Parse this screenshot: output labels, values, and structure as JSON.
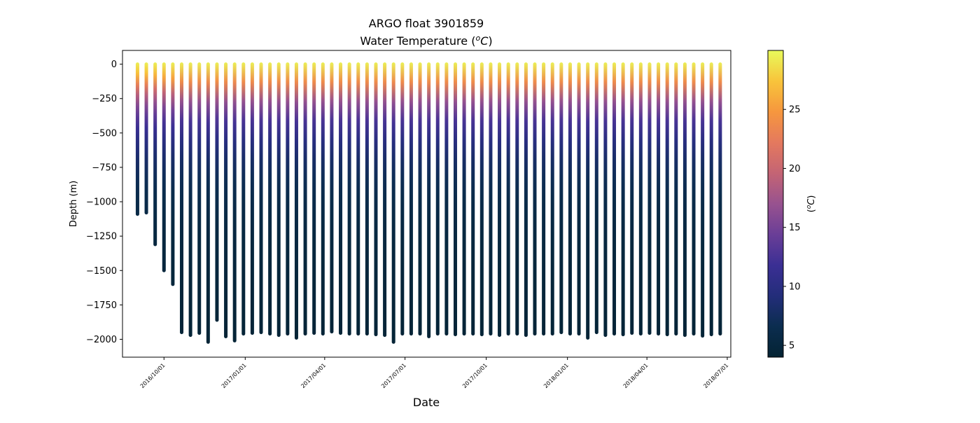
{
  "chart_data": {
    "type": "scatter",
    "title_line1": "ARGO float 3901859",
    "title_line2_prefix": "Water Temperature (",
    "title_line2_var": "o",
    "title_line2_unit": "C",
    "title_line2_suffix": ")",
    "xlabel": "Date",
    "ylabel": "Depth (m)",
    "colorbar_label_prefix": "(",
    "colorbar_label_var": "o",
    "colorbar_label_unit": "C",
    "colorbar_label_suffix": ")",
    "xlim": [
      "2016-08-15",
      "2018-07-05"
    ],
    "ylim": [
      -2130,
      100
    ],
    "yticks": [
      0,
      -250,
      -500,
      -750,
      -1000,
      -1250,
      -1500,
      -1750,
      -2000
    ],
    "ytick_labels": [
      "0",
      "−250",
      "−500",
      "−750",
      "−1000",
      "−1250",
      "−1500",
      "−1750",
      "−2000"
    ],
    "xticks": [
      "2016-10-01",
      "2017-01-01",
      "2017-04-01",
      "2017-07-01",
      "2017-10-01",
      "2018-01-01",
      "2018-04-01",
      "2018-07-01"
    ],
    "xtick_labels": [
      "2016/10/01",
      "2017/01/01",
      "2017/04/01",
      "2017/07/01",
      "2017/10/01",
      "2018/01/01",
      "2018/04/01",
      "2018/07/01"
    ],
    "colorbar": {
      "colormap": "thermal",
      "vmin": 4,
      "vmax": 30,
      "ticks": [
        5,
        10,
        15,
        20,
        25
      ],
      "tick_labels": [
        "5",
        "10",
        "15",
        "20",
        "25"
      ],
      "colors": [
        "#042333",
        "#0b2d4f",
        "#232d7a",
        "#3b2f94",
        "#6a3e97",
        "#98528f",
        "#c46474",
        "#e4795e",
        "#f6973e",
        "#f8c43b",
        "#e8fa5b"
      ]
    },
    "profiles": {
      "start_date": "2016-09-01",
      "interval_days": 10,
      "count": 67,
      "surface_temperature_c": 29.5,
      "bottom_temperature_c": 4.2,
      "max_depths_m": [
        -1090,
        -1080,
        -1310,
        -1500,
        -1600,
        -1950,
        -1970,
        -1955,
        -2020,
        -1860,
        -1980,
        -2010,
        -1960,
        -1955,
        -1950,
        -1960,
        -1970,
        -1960,
        -1990,
        -1960,
        -1955,
        -1960,
        -1945,
        -1955,
        -1960,
        -1960,
        -1960,
        -1965,
        -1970,
        -2020,
        -1960,
        -1960,
        -1960,
        -1980,
        -1960,
        -1960,
        -1965,
        -1960,
        -1960,
        -1965,
        -1960,
        -1970,
        -1960,
        -1960,
        -1970,
        -1960,
        -1960,
        -1960,
        -1950,
        -1960,
        -1960,
        -1990,
        -1950,
        -1970,
        -1960,
        -1965,
        -1955,
        -1960,
        -1955,
        -1960,
        -1965,
        -1960,
        -1970,
        -1960,
        -1975,
        -1965,
        -1960
      ],
      "temperature_profile": [
        {
          "depth": 0,
          "temp": 29.5
        },
        {
          "depth": -60,
          "temp": 28
        },
        {
          "depth": -120,
          "temp": 25
        },
        {
          "depth": -200,
          "temp": 20
        },
        {
          "depth": -300,
          "temp": 16
        },
        {
          "depth": -420,
          "temp": 12.5
        },
        {
          "depth": -550,
          "temp": 10
        },
        {
          "depth": -700,
          "temp": 8
        },
        {
          "depth": -900,
          "temp": 6.5
        },
        {
          "depth": -1200,
          "temp": 5.3
        },
        {
          "depth": -1500,
          "temp": 4.8
        },
        {
          "depth": -2100,
          "temp": 4.2
        }
      ]
    }
  }
}
